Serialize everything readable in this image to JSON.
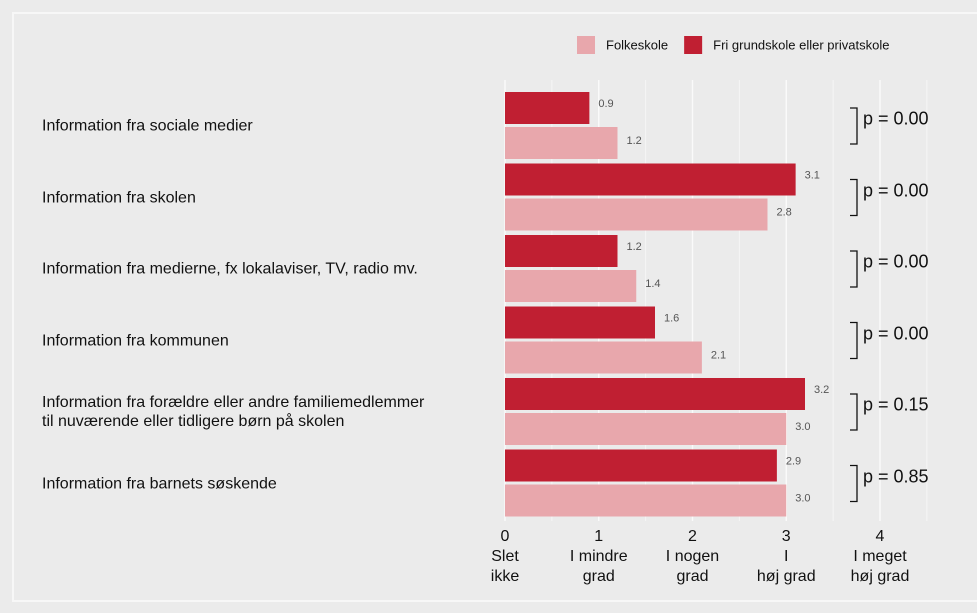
{
  "chart_data": {
    "type": "bar",
    "orientation": "horizontal",
    "categories": [
      "Information fra sociale medier",
      "Information fra skolen",
      "Information fra medierne, fx lokalaviser, TV, radio mv.",
      "Information fra kommunen",
      "Information fra forældre eller andre familiemedlemmer\ntil nuværende eller tidligere børn på skolen",
      "Information fra barnets søskende"
    ],
    "series": [
      {
        "name": "Fri grundskole eller privatskole",
        "color": "#c01f32",
        "values": [
          0.9,
          3.1,
          1.2,
          1.6,
          3.2,
          2.9
        ],
        "value_labels": [
          "0.9",
          "3.1",
          "1.2",
          "1.6",
          "3.2",
          "2.9"
        ]
      },
      {
        "name": "Folkeskole",
        "color": "#e8a7ac",
        "values": [
          1.2,
          2.8,
          1.4,
          2.1,
          3,
          3
        ],
        "value_labels": [
          "1.2",
          "2.8",
          "1.4",
          "2.1",
          "3.0",
          "3.0"
        ]
      }
    ],
    "legend_order": [
      1,
      0
    ],
    "legend": "top-right",
    "xlim": [
      0,
      5
    ],
    "xticks": [
      0,
      1,
      2,
      3,
      4
    ],
    "xtick_sublabels": [
      "Slet\nikke",
      "I mindre\ngrad",
      "I nogen\ngrad",
      "I\nhøj grad",
      "I meget\nhøj grad"
    ],
    "xminor": [
      0.5,
      1.5,
      2.5,
      3.5,
      4.5
    ],
    "grid": true,
    "annotations": [
      "p = 0.00",
      "p = 0.00",
      "p = 0.00",
      "p = 0.00",
      "p = 0.15",
      "p = 0.85"
    ]
  }
}
